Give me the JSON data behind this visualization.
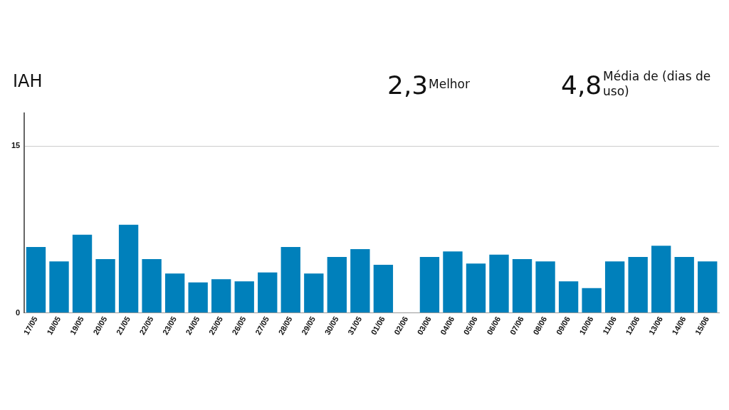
{
  "chart_data": {
    "type": "bar",
    "title": "IAH",
    "annotations": [
      "2,3",
      "Melhor",
      "4,8",
      "Média de (dias de uso)"
    ],
    "categories": [
      "17/05",
      "18/05",
      "19/05",
      "20/05",
      "21/05",
      "22/05",
      "23/05",
      "24/05",
      "25/05",
      "26/05",
      "27/05",
      "28/05",
      "29/05",
      "30/05",
      "31/05",
      "01/06",
      "02/06",
      "03/06",
      "04/06",
      "05/06",
      "06/06",
      "07/06",
      "08/06",
      "09/06",
      "10/06",
      "11/06",
      "12/06",
      "13/06",
      "14/06",
      "15/06"
    ],
    "values": [
      6.0,
      4.7,
      7.1,
      4.9,
      8.0,
      4.9,
      3.6,
      2.8,
      3.1,
      2.9,
      3.7,
      6.0,
      3.6,
      5.1,
      5.8,
      4.4,
      0,
      5.1,
      5.6,
      4.5,
      5.3,
      4.9,
      4.7,
      2.9,
      2.3,
      4.7,
      5.1,
      6.1,
      5.1,
      4.7
    ],
    "color": "#0080bb",
    "ylim": [
      0,
      18
    ],
    "yticks": [
      0,
      15
    ],
    "grid": "y"
  }
}
